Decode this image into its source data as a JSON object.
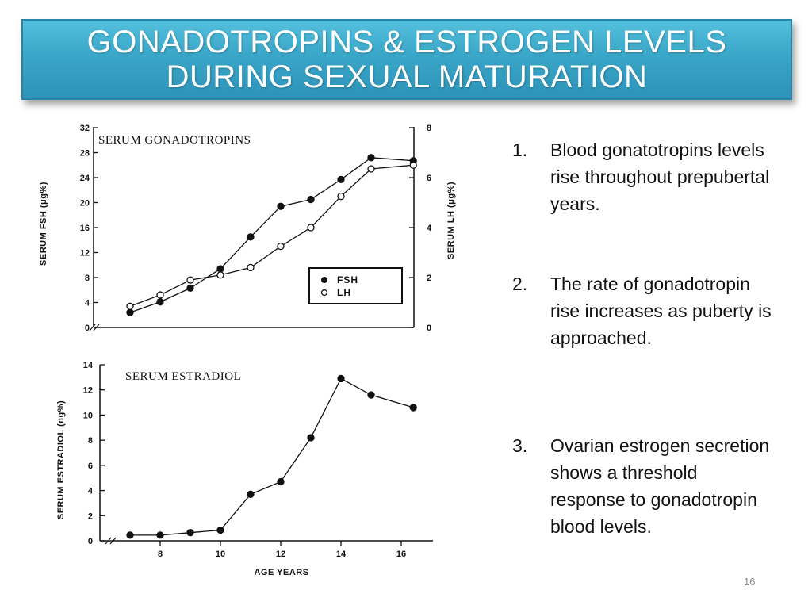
{
  "slide": {
    "title_lines": [
      "GONADOTROPINS & ESTROGEN LEVELS",
      "DURING SEXUAL MATURATION"
    ],
    "slide_number": "16",
    "points": [
      {
        "num": "1.",
        "text": "Blood gonatotropins levels rise throughout prepubertal years."
      },
      {
        "num": "2.",
        "text": "The rate of gonadotropin rise increases as puberty is approached."
      },
      {
        "num": "3.",
        "text": "Ovarian estrogen secretion shows a threshold response to gonadotropin blood levels."
      }
    ]
  },
  "chart_data": [
    {
      "type": "line",
      "title": "SERUM GONADOTROPINS",
      "ylabel": "SERUM FSH (μg%)",
      "ylabel_right": "SERUM LH (μg%)",
      "ylim": [
        0,
        32
      ],
      "yticks": [
        0,
        4,
        8,
        12,
        16,
        20,
        24,
        28,
        32
      ],
      "ylim_right": [
        0,
        8
      ],
      "yticks_right": [
        0,
        2,
        4,
        6,
        8
      ],
      "legend_position": "bottom-right",
      "grid": false,
      "series": [
        {
          "name": "FSH",
          "marker": "filled-circle",
          "axis": "left",
          "x": [
            7,
            8,
            9,
            10,
            11,
            12,
            13,
            14,
            15,
            16.4
          ],
          "values": [
            2.4,
            4.1,
            6.3,
            9.4,
            14.5,
            19.4,
            20.5,
            23.7,
            27.2,
            26.7
          ]
        },
        {
          "name": "LH",
          "marker": "open-circle",
          "axis": "right",
          "x": [
            7,
            8,
            9,
            10,
            11,
            12,
            13,
            14,
            15,
            16.4
          ],
          "values": [
            0.85,
            1.3,
            1.9,
            2.1,
            2.4,
            3.25,
            4.0,
            5.25,
            6.35,
            6.5
          ]
        }
      ]
    },
    {
      "type": "line",
      "title": "SERUM ESTRADIOL",
      "xlabel": "AGE YEARS",
      "ylabel": "SERUM ESTRADIOL (ng%)",
      "ylim": [
        0,
        14
      ],
      "yticks": [
        0,
        2,
        4,
        6,
        8,
        10,
        12,
        14
      ],
      "xticks": [
        8,
        10,
        12,
        14,
        16
      ],
      "grid": false,
      "series": [
        {
          "name": "",
          "marker": "filled-circle",
          "x": [
            7,
            8,
            9,
            10,
            11,
            12,
            13,
            14,
            15,
            16.4
          ],
          "values": [
            0.45,
            0.45,
            0.65,
            0.85,
            3.7,
            4.7,
            8.2,
            12.9,
            11.6,
            10.6
          ]
        }
      ]
    }
  ]
}
